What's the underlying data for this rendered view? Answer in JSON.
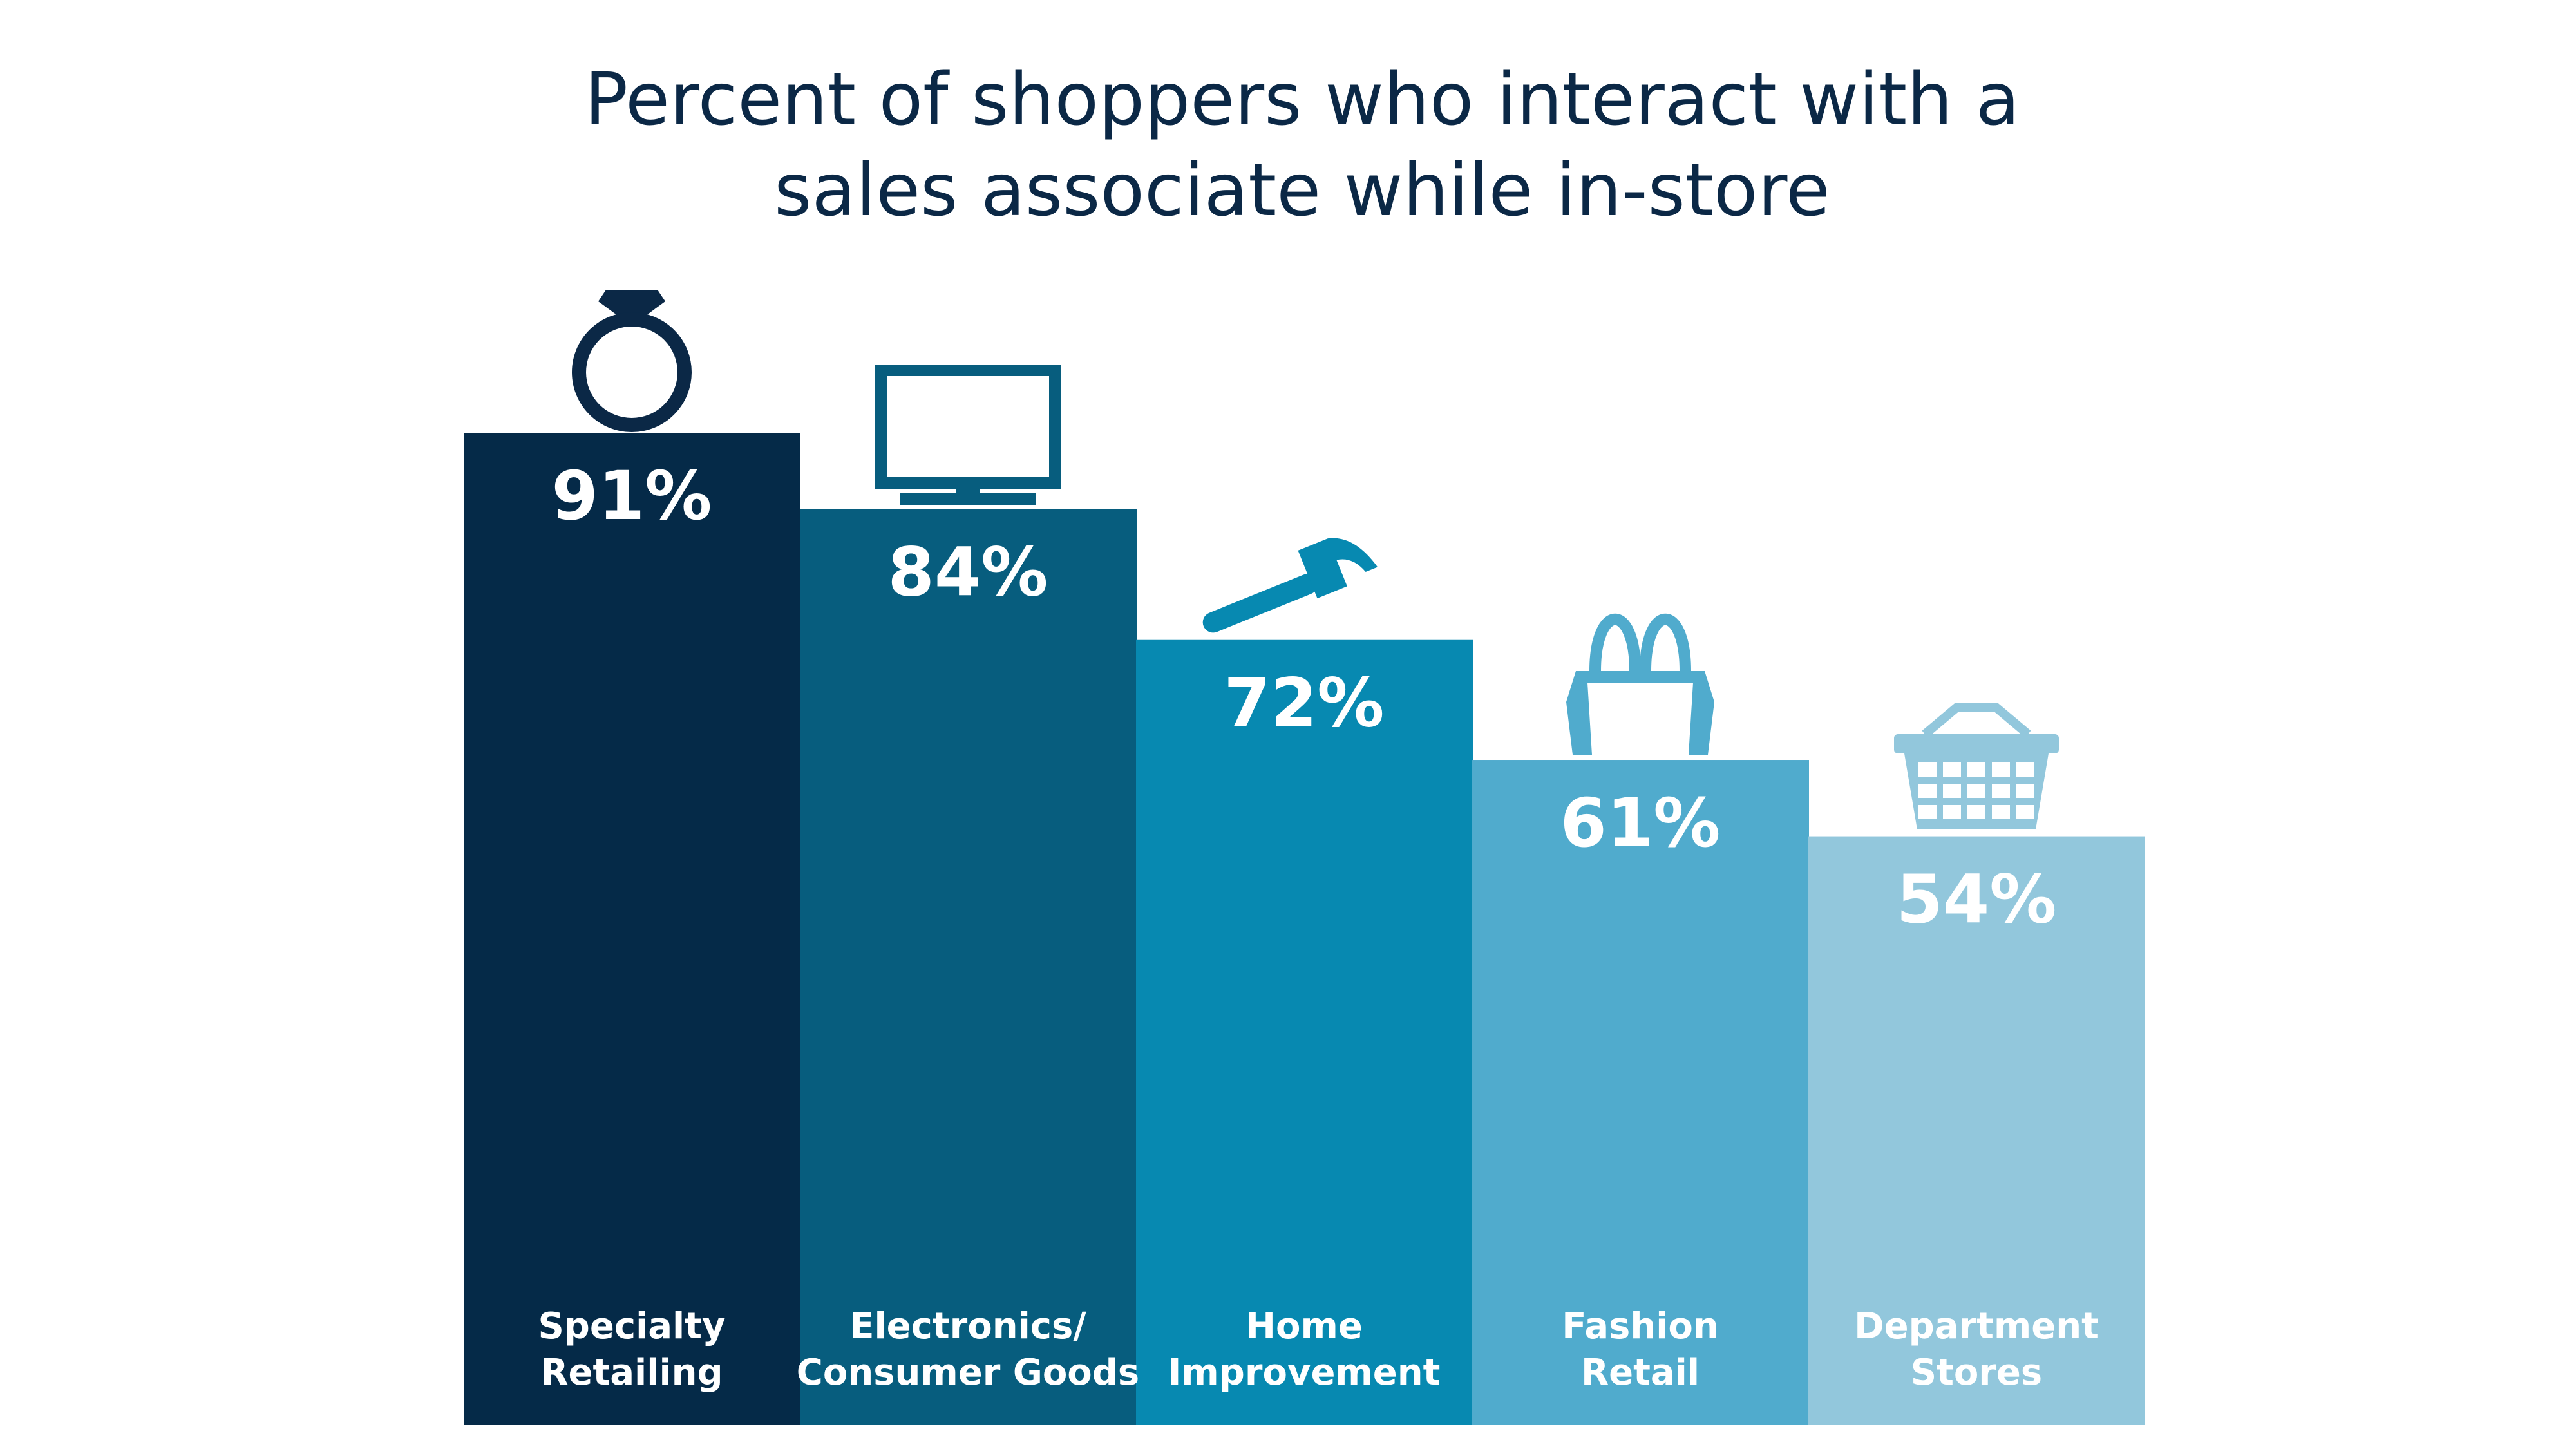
{
  "chart_data": {
    "type": "bar",
    "title_lines": [
      "Percent of shoppers who interact with a",
      "sales associate while in-store"
    ],
    "categories": [
      [
        "Specialty",
        "Retailing"
      ],
      [
        "Electronics/",
        "Consumer Goods"
      ],
      [
        "Home",
        "Improvement"
      ],
      [
        "Fashion",
        "Retail"
      ],
      [
        "Department",
        "Stores"
      ]
    ],
    "values": [
      91,
      84,
      72,
      61,
      54
    ],
    "value_labels": [
      "91%",
      "84%",
      "72%",
      "61%",
      "54%"
    ],
    "colors": [
      "#052a48",
      "#075d7e",
      "#0789b1",
      "#50abcd",
      "#92c7dc"
    ],
    "icons": [
      "diamond-ring-icon",
      "monitor-icon",
      "hammer-icon",
      "shopping-bag-icon",
      "shopping-basket-icon"
    ],
    "ylim": [
      0,
      100
    ],
    "grid": false,
    "legend": "none"
  }
}
